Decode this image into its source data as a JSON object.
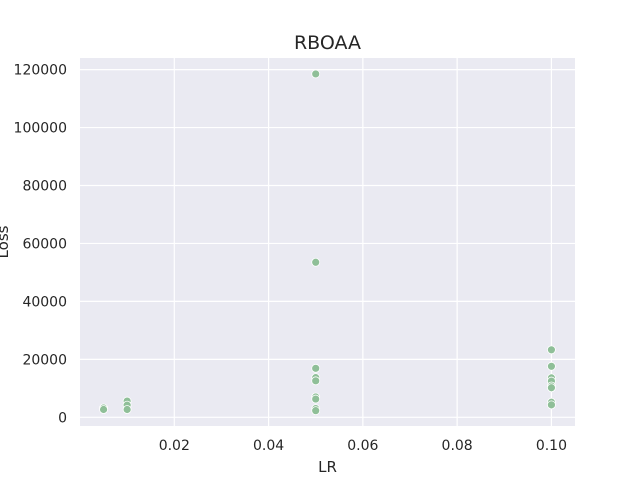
{
  "chart_data": {
    "type": "scatter",
    "title": "RBOAA",
    "xlabel": "LR",
    "ylabel": "Loss",
    "xlim": [
      -0.0,
      0.105
    ],
    "ylim": [
      -3000,
      124000
    ],
    "xticks": [
      0.02,
      0.04,
      0.06,
      0.08,
      0.1
    ],
    "xtick_labels": [
      "0.02",
      "0.04",
      "0.06",
      "0.08",
      "0.10"
    ],
    "yticks": [
      0,
      20000,
      40000,
      60000,
      80000,
      100000,
      120000
    ],
    "ytick_labels": [
      "0",
      "20000",
      "40000",
      "60000",
      "80000",
      "100000",
      "120000"
    ],
    "grid": true,
    "background": "#eaeaf2",
    "grid_color": "#ffffff",
    "point_color": "#8fbf98",
    "points": [
      {
        "x": 0.005,
        "y": 3200
      },
      {
        "x": 0.005,
        "y": 2700
      },
      {
        "x": 0.01,
        "y": 5600
      },
      {
        "x": 0.01,
        "y": 4200
      },
      {
        "x": 0.01,
        "y": 2700
      },
      {
        "x": 0.05,
        "y": 118500
      },
      {
        "x": 0.05,
        "y": 53500
      },
      {
        "x": 0.05,
        "y": 16900
      },
      {
        "x": 0.05,
        "y": 13700
      },
      {
        "x": 0.05,
        "y": 12600
      },
      {
        "x": 0.05,
        "y": 7000
      },
      {
        "x": 0.05,
        "y": 6300
      },
      {
        "x": 0.05,
        "y": 3000
      },
      {
        "x": 0.05,
        "y": 2300
      },
      {
        "x": 0.1,
        "y": 23300
      },
      {
        "x": 0.1,
        "y": 17600
      },
      {
        "x": 0.1,
        "y": 13600
      },
      {
        "x": 0.1,
        "y": 12500
      },
      {
        "x": 0.1,
        "y": 10800
      },
      {
        "x": 0.1,
        "y": 10200
      },
      {
        "x": 0.1,
        "y": 5200
      },
      {
        "x": 0.1,
        "y": 4300
      }
    ]
  }
}
